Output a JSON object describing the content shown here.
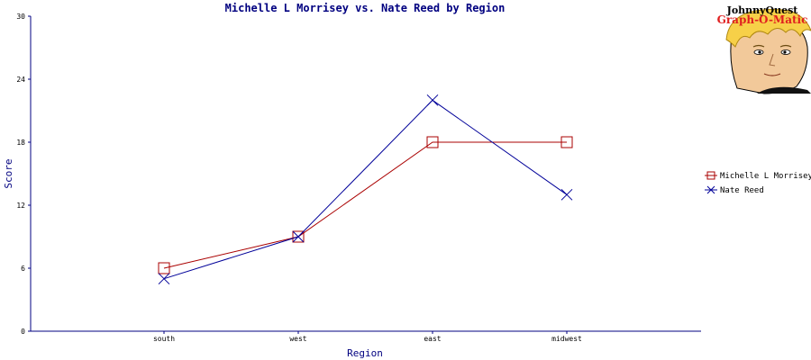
{
  "chart_data": {
    "type": "line",
    "title": "Michelle L Morrisey vs. Nate Reed by Region",
    "xlabel": "Region",
    "ylabel": "Score",
    "categories": [
      "south",
      "west",
      "east",
      "midwest"
    ],
    "ylim": [
      0,
      30
    ],
    "yticks": [
      0,
      6,
      12,
      18,
      24,
      30
    ],
    "grid": false,
    "legend_position": "right",
    "series": [
      {
        "name": "Michelle L Morrisey",
        "values": [
          6,
          9,
          18,
          18
        ],
        "color": "#aa0000",
        "marker": "square"
      },
      {
        "name": "Nate Reed",
        "values": [
          5,
          9,
          22,
          13
        ],
        "color": "#000099",
        "marker": "x"
      }
    ]
  },
  "logo": {
    "line1": "JohnnyQuest",
    "line2": "Graph-O-Matic"
  },
  "colors": {
    "axis": "#000080",
    "title": "#000080"
  }
}
